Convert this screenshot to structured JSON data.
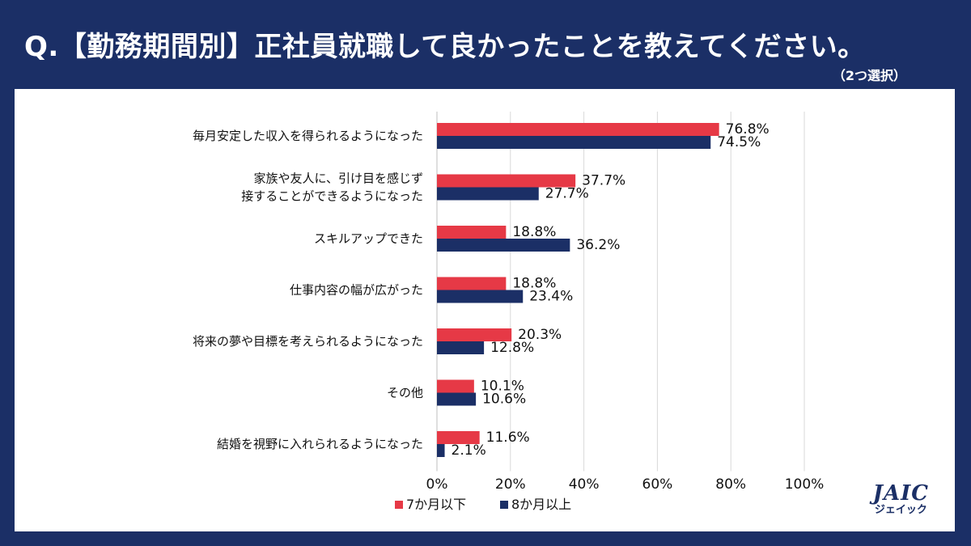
{
  "header": {
    "title": "Q.【勤務期間別】正社員就職して良かったことを教えてください。",
    "subtitle": "（2つ選択）"
  },
  "logo": {
    "main": "JAIC",
    "sub": "ジェイック"
  },
  "colors": {
    "series1": "#e63946",
    "series2": "#1b2f66",
    "background": "#1b2f66"
  },
  "chart_data": {
    "type": "bar",
    "orientation": "horizontal",
    "categories": [
      [
        "毎月安定した収入を得られるようになった"
      ],
      [
        "家族や友人に、引け目を感じず",
        "接することができるようになった"
      ],
      [
        "スキルアップできた"
      ],
      [
        "仕事内容の幅が広がった"
      ],
      [
        "将来の夢や目標を考えられるようになった"
      ],
      [
        "その他"
      ],
      [
        "結婚を視野に入れられるようになった"
      ]
    ],
    "series": [
      {
        "name": "7か月以下",
        "values": [
          76.8,
          37.7,
          18.8,
          18.8,
          20.3,
          10.1,
          11.6
        ]
      },
      {
        "name": "8か月以上",
        "values": [
          74.5,
          27.7,
          36.2,
          23.4,
          12.8,
          10.6,
          2.1
        ]
      }
    ],
    "xticks": [
      0,
      20,
      40,
      60,
      80,
      100
    ],
    "xlim": [
      0,
      100
    ],
    "value_suffix": "%",
    "tick_suffix": "%",
    "legend_position": "bottom",
    "grid": true
  }
}
